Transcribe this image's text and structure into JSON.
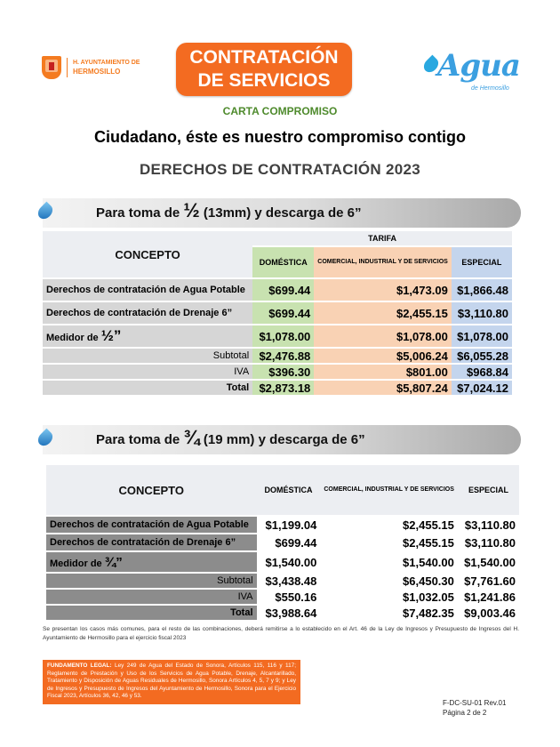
{
  "header": {
    "logo_line1": "H. AYUNTAMIENTO DE",
    "logo_line2": "HERMOSILLO",
    "title_line1": "CONTRATACIÓN",
    "title_line2": "DE SERVICIOS",
    "agua_word": "Agua",
    "agua_sub": "de Hermosillo"
  },
  "subtitle": "CARTA COMPROMISO",
  "headline": "Ciudadano, éste es nuestro compromiso contigo",
  "section_title": "DERECHOS DE CONTRATACIÓN 2023",
  "colors": {
    "orange": "#f36b21",
    "green_cell": "#c8e2b0",
    "peach_cell": "#f9d2b4",
    "blue_cell": "#c4d5ed",
    "carta_green": "#4e8a2c"
  },
  "table1": {
    "banner_prefix": "Para toma de ",
    "banner_fraction": "½",
    "banner_suffix": " (13mm) y descarga de 6”",
    "concept_header": "CONCEPTO",
    "tarifa_header": "TARIFA",
    "col_dom": "DOMÉSTICA",
    "col_com": "COMERCIAL, INDUSTRIAL Y DE SERVICIOS",
    "col_esp": "ESPECIAL",
    "rows": [
      {
        "label": "Derechos de contratación de Agua Potable",
        "dom": "$699.44",
        "com": "$1,473.09",
        "esp": "$1,866.48"
      },
      {
        "label": "Derechos de contratación de Drenaje 6”",
        "dom": "$699.44",
        "com": "$2,455.15",
        "esp": "$3,110.80"
      },
      {
        "label": "Medidor de ",
        "label_frac": "½”",
        "dom": "$1,078.00",
        "com": "$1,078.00",
        "esp": "$1,078.00"
      }
    ],
    "subtotal": {
      "label": "Subtotal",
      "dom": "$2,476.88",
      "com": "$5,006.24",
      "esp": "$6,055.28"
    },
    "iva": {
      "label": "IVA",
      "dom": "$396.30",
      "com": "$801.00",
      "esp": "$968.84"
    },
    "total": {
      "label": "Total",
      "dom": "$2,873.18",
      "com": "$5,807.24",
      "esp": "$7,024.12"
    }
  },
  "table2": {
    "banner_prefix": "Para toma de ",
    "banner_fraction": "¾",
    "banner_suffix": " (19 mm) y descarga de 6”",
    "concept_header": "CONCEPTO",
    "col_dom": "DOMÉSTICA",
    "col_com": "COMERCIAL, INDUSTRIAL Y DE SERVICIOS",
    "col_esp": "ESPECIAL",
    "rows": [
      {
        "label": "Derechos de contratación de Agua Potable",
        "dom": "$1,199.04",
        "com": "$2,455.15",
        "esp": "$3,110.80"
      },
      {
        "label": "Derechos de contratación de Drenaje 6”",
        "dom": "$699.44",
        "com": "$2,455.15",
        "esp": "$3,110.80"
      },
      {
        "label": "Medidor de ",
        "label_frac": "¾”",
        "dom": "$1,540.00",
        "com": "$1,540.00",
        "esp": "$1,540.00"
      }
    ],
    "subtotal": {
      "label": "Subtotal",
      "dom": "$3,438.48",
      "com": "$6,450.30",
      "esp": "$7,761.60"
    },
    "iva": {
      "label": "IVA",
      "dom": "$550.16",
      "com": "$1,032.05",
      "esp": "$1,241.86"
    },
    "total": {
      "label": "Total",
      "dom": "$3,988.64",
      "com": "$7,482.35",
      "esp": "$9,003.46"
    }
  },
  "note": "Se presentan los casos más comunes, para el resto de las combinaciones, deberá remitirse a lo establecido en el Art. 46 de la Ley de Ingresos y Presupuesto de Ingresos del H. Ayuntamiento de Hermosillo para el ejercicio fiscal 2023",
  "legal": {
    "label": "FUNDAMENTO LEGAL:",
    "text": " Ley 249 de Agua del Estado de Sonora, Artículos 115, 116 y 117; Reglamento de Prestación y Uso de los Servicios de Agua Potable, Drenaje, Alcantarillado, Tratamiento y Disposición de Aguas Residuales de Hermosillo, Sonora Artículos 4, 5, 7 y 9; y Ley de Ingresos y Presupuesto de Ingresos del Ayuntamiento de Hermosillo, Sonora para el Ejercicio Fiscal 2023, Artículos 36, 42, 46 y 53."
  },
  "footer": {
    "code": "F-DC-SU-01 Rev.01",
    "page": "Página 2 de 2"
  }
}
